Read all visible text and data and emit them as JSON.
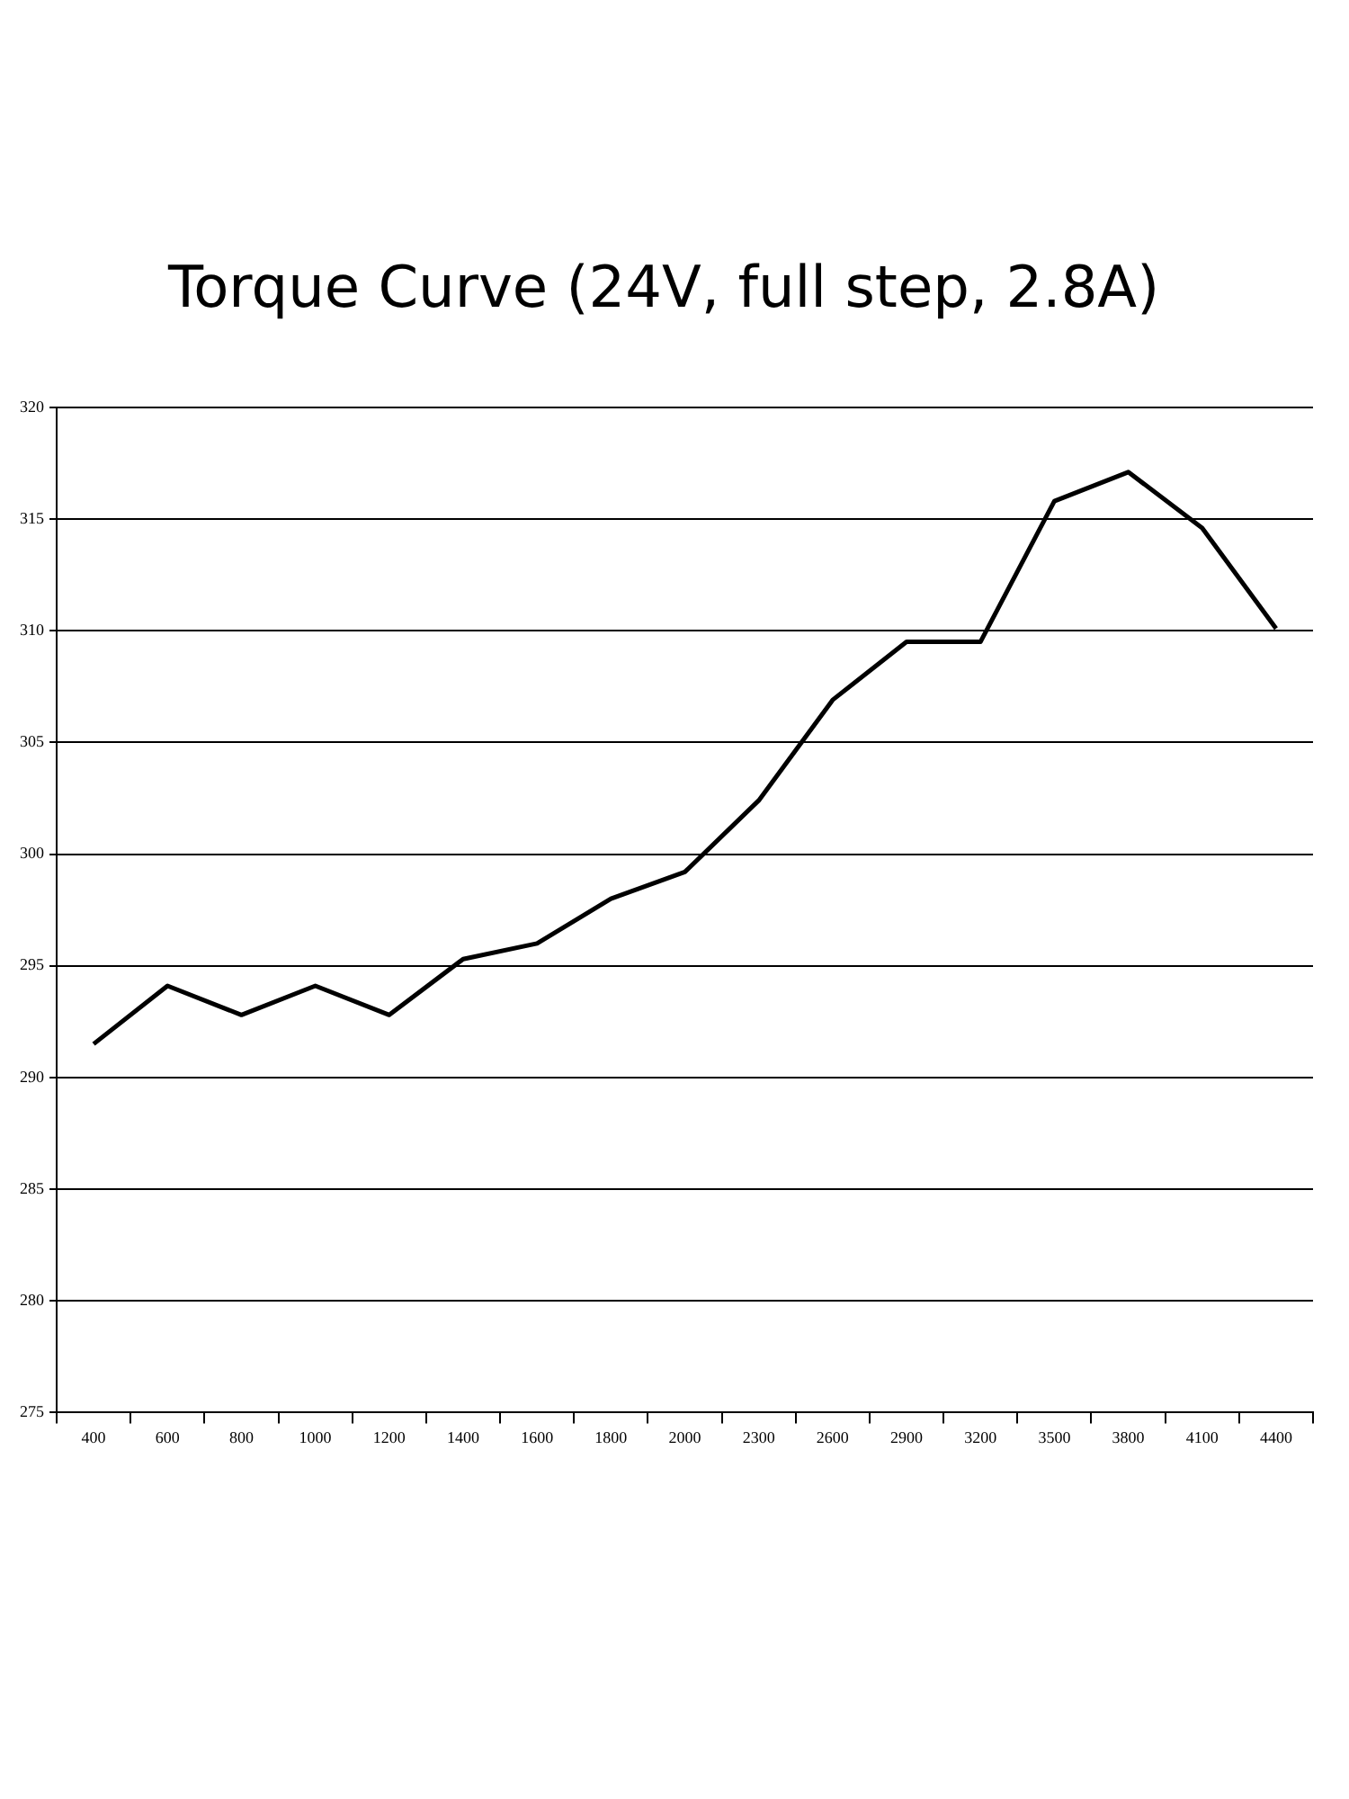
{
  "chart_data": {
    "type": "line",
    "title": "Torque Curve (24V, full step, 2.8A)",
    "categories": [
      "400",
      "600",
      "800",
      "1000",
      "1200",
      "1400",
      "1600",
      "1800",
      "2000",
      "2300",
      "2600",
      "2900",
      "3200",
      "3500",
      "3800",
      "4100",
      "4400"
    ],
    "series": [
      {
        "color": "#000000",
        "values": [
          291.5,
          294.1,
          292.8,
          294.1,
          292.8,
          295.3,
          296.0,
          298.0,
          299.2,
          302.4,
          306.9,
          309.5,
          309.5,
          315.8,
          317.1,
          314.6,
          310.1
        ]
      }
    ],
    "ylim": [
      275,
      320
    ],
    "yticks": [
      275,
      280,
      285,
      290,
      295,
      300,
      305,
      310,
      315,
      320
    ],
    "grid": "y",
    "legend": false,
    "marker": "none",
    "line_style": "solid"
  }
}
